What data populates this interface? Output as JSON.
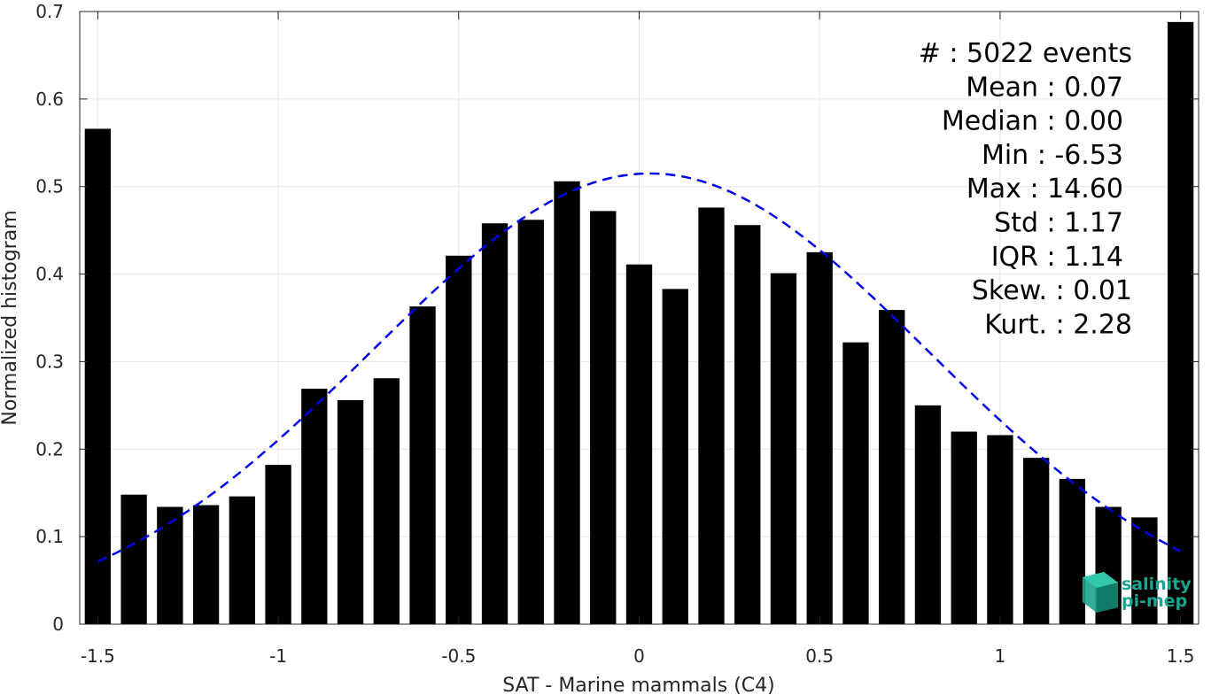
{
  "chart_data": {
    "type": "bar",
    "xlabel": "SAT - Marine mammals (C4)",
    "ylabel": "Normalized histogram",
    "xlim": [
      -1.55,
      1.55
    ],
    "ylim": [
      0,
      0.7
    ],
    "xticks": [
      -1.5,
      -1,
      -0.5,
      0,
      0.5,
      1,
      1.5
    ],
    "xtick_labels": [
      "-1.5",
      "-1",
      "-0.5",
      "0",
      "0.5",
      "1",
      "1.5"
    ],
    "yticks": [
      0,
      0.1,
      0.2,
      0.3,
      0.4,
      0.5,
      0.6,
      0.7
    ],
    "ytick_labels": [
      "0",
      "0.1",
      "0.2",
      "0.3",
      "0.4",
      "0.5",
      "0.6",
      "0.7"
    ],
    "grid": true,
    "bar_color": "#000000",
    "bars": {
      "x": [
        -1.5,
        -1.4,
        -1.3,
        -1.2,
        -1.1,
        -1.0,
        -0.9,
        -0.8,
        -0.7,
        -0.6,
        -0.5,
        -0.4,
        -0.3,
        -0.2,
        -0.1,
        0.0,
        0.1,
        0.2,
        0.3,
        0.4,
        0.5,
        0.6,
        0.7,
        0.8,
        0.9,
        1.0,
        1.1,
        1.2,
        1.3,
        1.4,
        1.5
      ],
      "values": [
        0.566,
        0.148,
        0.134,
        0.136,
        0.146,
        0.182,
        0.269,
        0.256,
        0.281,
        0.363,
        0.421,
        0.458,
        0.462,
        0.506,
        0.472,
        0.411,
        0.383,
        0.476,
        0.456,
        0.401,
        0.425,
        0.322,
        0.359,
        0.25,
        0.22,
        0.216,
        0.19,
        0.166,
        0.134,
        0.122,
        0.688
      ]
    },
    "fit_curve": {
      "style": "dashed",
      "color": "#0000ee",
      "mean": 0.03,
      "std": 0.77,
      "peak": 0.515,
      "x_range": [
        -1.5,
        1.5
      ]
    },
    "stats_box": {
      "lines": [
        {
          "label": "#",
          "separator": " : ",
          "value": "5022 events"
        },
        {
          "label": "Mean",
          "separator": " : ",
          "value": "0.07"
        },
        {
          "label": "Median",
          "separator": " : ",
          "value": "0.00"
        },
        {
          "label": "Min",
          "separator": " : ",
          "value": "-6.53"
        },
        {
          "label": "Max",
          "separator": " : ",
          "value": "14.60"
        },
        {
          "label": "Std",
          "separator": " : ",
          "value": "1.17"
        },
        {
          "label": "IQR",
          "separator": " : ",
          "value": "1.14"
        },
        {
          "label": "Skew.",
          "separator": " : ",
          "value": "0.01"
        },
        {
          "label": "Kurt.",
          "separator": " : ",
          "value": "2.28"
        }
      ]
    },
    "logo": {
      "line1": "salinity",
      "line2": "pi-mep",
      "color": "#1ba58e"
    }
  }
}
